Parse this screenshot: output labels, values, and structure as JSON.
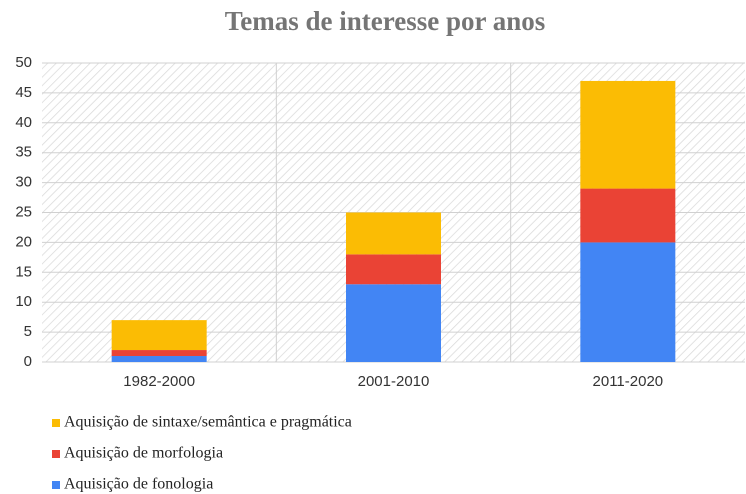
{
  "chart_data": {
    "type": "stacked_bar",
    "title": "Temas de interesse por anos",
    "categories": [
      "1982-2000",
      "2001-2010",
      "2011-2020"
    ],
    "series": [
      {
        "name": "Aquisição de fonologia",
        "color": "#4285f4",
        "values": [
          1,
          13,
          20
        ]
      },
      {
        "name": "Aquisição de morfologia",
        "color": "#ea4335",
        "values": [
          1,
          5,
          9
        ]
      },
      {
        "name": "Aquisição de sintaxe/semântica e pragmática",
        "color": "#fbbc04",
        "values": [
          5,
          7,
          18
        ]
      }
    ],
    "ylim": [
      0,
      50
    ],
    "yticks": [
      0,
      5,
      10,
      15,
      20,
      25,
      30,
      35,
      40,
      45,
      50
    ],
    "grid": true,
    "legend": "bottom"
  }
}
